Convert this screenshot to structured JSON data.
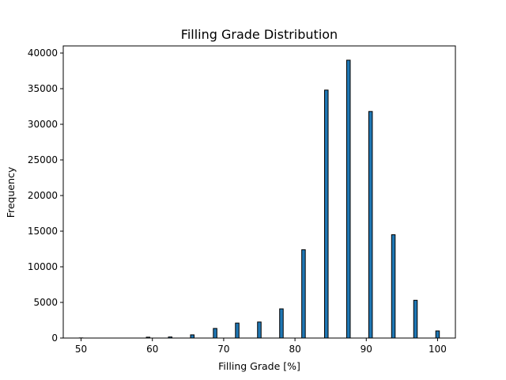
{
  "chart_data": {
    "type": "bar",
    "title": "Filling Grade Distribution",
    "xlabel": "Filling Grade [%]",
    "ylabel": "Frequency",
    "xlim": [
      47.5,
      102.5
    ],
    "ylim": [
      0,
      41000
    ],
    "xticks": [
      50,
      60,
      70,
      80,
      90,
      100
    ],
    "yticks": [
      0,
      5000,
      10000,
      15000,
      20000,
      25000,
      30000,
      35000,
      40000
    ],
    "bar_width": 0.5,
    "bar_color": "#1f77b4",
    "edge_color": "#000000",
    "grid": false,
    "bins": [
      {
        "x": 50.0,
        "value": 20
      },
      {
        "x": 53.1,
        "value": 0
      },
      {
        "x": 56.2,
        "value": 0
      },
      {
        "x": 59.4,
        "value": 120
      },
      {
        "x": 62.5,
        "value": 150
      },
      {
        "x": 65.6,
        "value": 450
      },
      {
        "x": 68.8,
        "value": 1350
      },
      {
        "x": 71.9,
        "value": 2100
      },
      {
        "x": 75.0,
        "value": 2250
      },
      {
        "x": 78.1,
        "value": 4100
      },
      {
        "x": 81.2,
        "value": 12400
      },
      {
        "x": 84.4,
        "value": 34800
      },
      {
        "x": 87.5,
        "value": 39000
      },
      {
        "x": 90.6,
        "value": 31800
      },
      {
        "x": 93.8,
        "value": 14500
      },
      {
        "x": 96.9,
        "value": 5300
      },
      {
        "x": 100.0,
        "value": 1000
      }
    ]
  }
}
